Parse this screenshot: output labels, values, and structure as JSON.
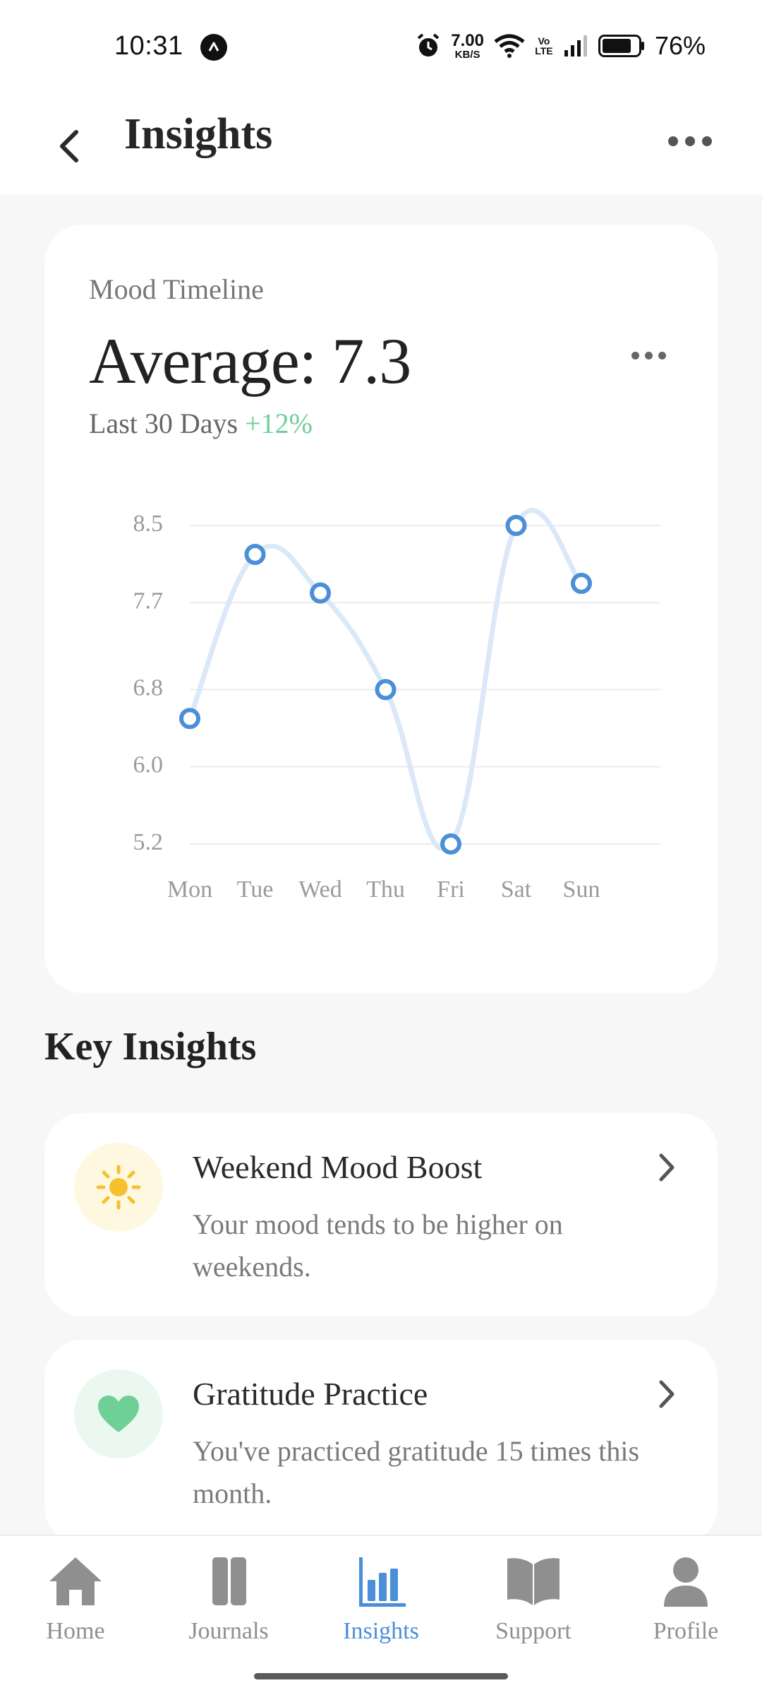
{
  "status_bar": {
    "time": "10:31",
    "net_speed_value": "7.00",
    "net_speed_unit": "KB/S",
    "volte_top": "Vo",
    "volte_bottom": "LTE",
    "battery": "76%"
  },
  "header": {
    "title": "Insights"
  },
  "mood_card": {
    "label": "Mood Timeline",
    "average": "Average: 7.3",
    "period": "Last 30 Days",
    "delta": "+12%"
  },
  "chart_data": {
    "type": "line",
    "categories": [
      "Mon",
      "Tue",
      "Wed",
      "Thu",
      "Fri",
      "Sat",
      "Sun"
    ],
    "values": [
      6.5,
      8.2,
      7.8,
      6.8,
      5.2,
      8.5,
      7.9
    ],
    "y_ticks": [
      "8.5",
      "7.7",
      "6.8",
      "6.0",
      "5.2"
    ],
    "ylim": [
      5.2,
      8.5
    ],
    "grid": true,
    "line_color": "#dbe8f8",
    "point_color": "#4a8fd8"
  },
  "key_insights": {
    "title": "Key Insights",
    "items": [
      {
        "title": "Weekend Mood Boost",
        "description": "Your mood tends to be higher on weekends.",
        "icon": "sun-icon",
        "icon_color": "#f5c12e",
        "icon_bg": "#fff8e1"
      },
      {
        "title": "Gratitude Practice",
        "description": "You've practiced gratitude 15 times this month.",
        "icon": "heart-icon",
        "icon_color": "#6fcf97",
        "icon_bg": "#eaf8f0"
      }
    ]
  },
  "bottom_nav": {
    "items": [
      {
        "label": "Home",
        "icon": "home-icon"
      },
      {
        "label": "Journals",
        "icon": "journals-icon"
      },
      {
        "label": "Insights",
        "icon": "chart-icon",
        "active": true
      },
      {
        "label": "Support",
        "icon": "book-icon"
      },
      {
        "label": "Profile",
        "icon": "person-icon"
      }
    ],
    "active_color": "#4a8fd8",
    "inactive_color": "#8f8f8f"
  }
}
